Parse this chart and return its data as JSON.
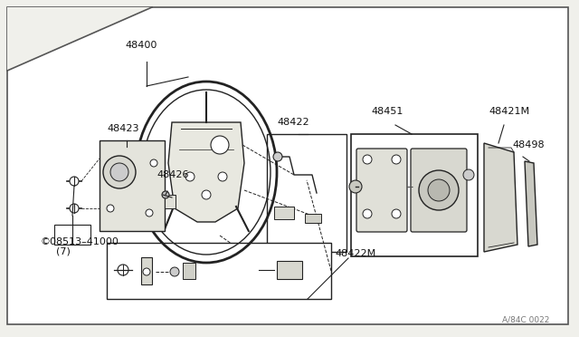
{
  "bg_color": "#f0f0eb",
  "border_color": "#555555",
  "line_color": "#222222",
  "text_color": "#111111",
  "watermark": "A/84C 0022",
  "fig_w": 6.4,
  "fig_h": 3.72,
  "dpi": 100
}
